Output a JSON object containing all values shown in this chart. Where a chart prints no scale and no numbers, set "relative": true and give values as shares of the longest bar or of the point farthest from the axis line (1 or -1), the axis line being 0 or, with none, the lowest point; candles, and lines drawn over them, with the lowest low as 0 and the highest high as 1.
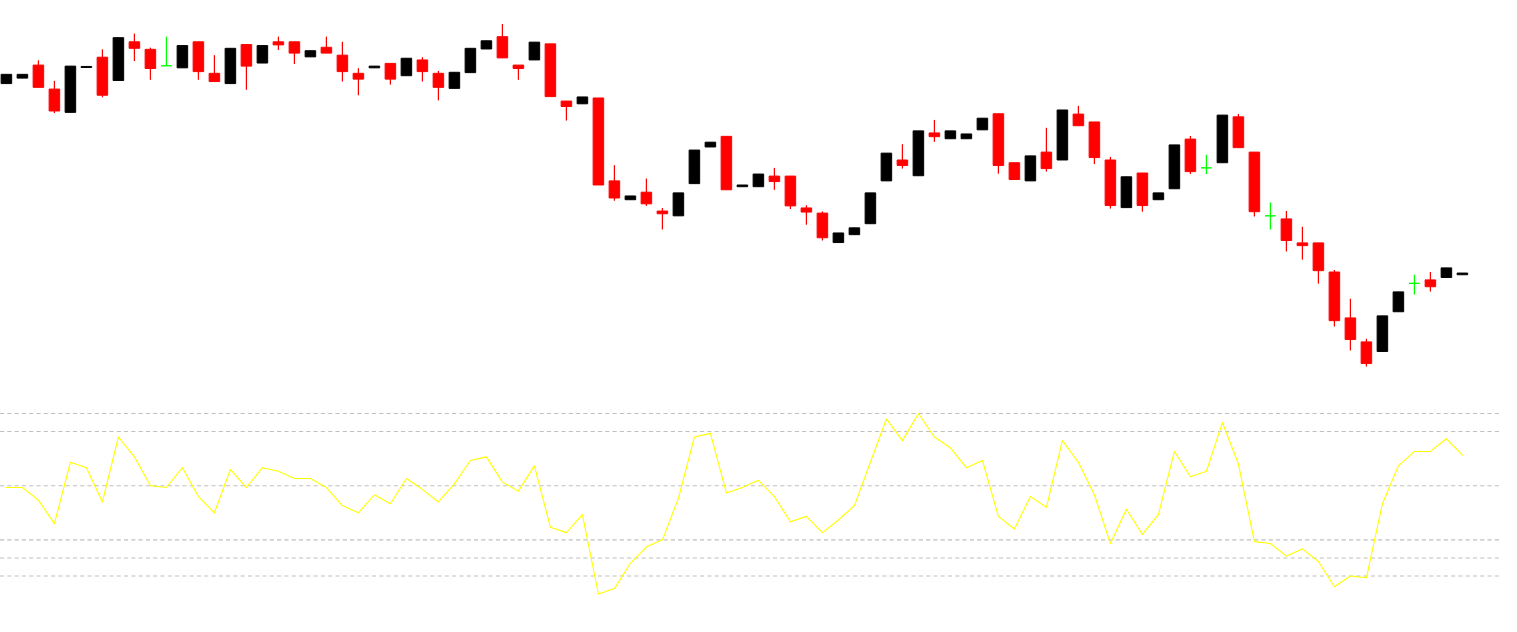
{
  "chart_data": [
    {
      "type": "candlestick",
      "relative": true,
      "tick_labels": false,
      "categories": [
        null,
        null,
        null,
        null,
        null,
        null,
        null,
        null,
        null,
        null,
        null,
        null,
        null,
        null,
        null,
        null,
        null,
        null,
        null,
        null,
        null,
        null,
        null,
        null,
        null,
        null,
        null,
        null,
        null,
        null,
        null,
        null,
        null,
        null,
        null,
        null,
        null,
        null,
        null,
        null,
        null,
        null,
        null,
        null,
        null,
        null,
        null,
        null,
        null,
        null,
        null,
        null,
        null,
        null,
        null,
        null,
        null,
        null,
        null,
        null,
        null,
        null,
        null,
        null,
        null,
        null,
        null,
        null,
        null,
        null,
        null,
        null,
        null,
        null,
        null,
        null,
        null,
        null,
        null,
        null,
        null,
        null,
        null,
        null,
        null,
        null,
        null,
        null,
        null,
        null,
        null,
        null
      ],
      "ohlc": [
        [
          0.826,
          0.853,
          0.826,
          0.853
        ],
        [
          0.842,
          0.853,
          0.842,
          0.853
        ],
        [
          0.88,
          0.894,
          0.815,
          0.815
        ],
        [
          0.81,
          0.834,
          0.74,
          0.746
        ],
        [
          0.742,
          0.877,
          0.742,
          0.877
        ],
        [
          0.873,
          0.876,
          0.873,
          0.876
        ],
        [
          0.903,
          0.926,
          0.786,
          0.792
        ],
        [
          0.835,
          0.96,
          0.835,
          0.96
        ],
        [
          0.948,
          0.972,
          0.892,
          0.929
        ],
        [
          0.926,
          0.931,
          0.837,
          0.87
        ],
        [
          0.878,
          0.963,
          0.878,
          0.878
        ],
        [
          0.872,
          0.937,
          0.872,
          0.937
        ],
        [
          0.948,
          0.948,
          0.837,
          0.861
        ],
        [
          0.856,
          0.909,
          0.832,
          0.832
        ],
        [
          0.826,
          0.929,
          0.826,
          0.929
        ],
        [
          0.94,
          0.94,
          0.808,
          0.877
        ],
        [
          0.886,
          0.937,
          0.886,
          0.937
        ],
        [
          0.948,
          0.963,
          0.924,
          0.939
        ],
        [
          0.948,
          0.948,
          0.883,
          0.915
        ],
        [
          0.904,
          0.922,
          0.904,
          0.922
        ],
        [
          0.932,
          0.963,
          0.915,
          0.915
        ],
        [
          0.909,
          0.948,
          0.832,
          0.861
        ],
        [
          0.856,
          0.871,
          0.792,
          0.839
        ],
        [
          0.872,
          0.877,
          0.872,
          0.877
        ],
        [
          0.885,
          0.885,
          0.823,
          0.839
        ],
        [
          0.849,
          0.9,
          0.849,
          0.9
        ],
        [
          0.895,
          0.903,
          0.832,
          0.861
        ],
        [
          0.856,
          0.863,
          0.777,
          0.815
        ],
        [
          0.812,
          0.859,
          0.812,
          0.859
        ],
        [
          0.858,
          0.929,
          0.858,
          0.929
        ],
        [
          0.927,
          0.951,
          0.927,
          0.951
        ],
        [
          0.963,
          1.0,
          0.901,
          0.901
        ],
        [
          0.88,
          0.88,
          0.837,
          0.87
        ],
        [
          0.895,
          0.947,
          0.895,
          0.947
        ],
        [
          0.942,
          0.942,
          0.788,
          0.788
        ],
        [
          0.775,
          0.775,
          0.718,
          0.759
        ],
        [
          0.767,
          0.787,
          0.767,
          0.787
        ],
        [
          0.784,
          0.784,
          0.53,
          0.53
        ],
        [
          0.542,
          0.588,
          0.484,
          0.492
        ],
        [
          0.487,
          0.498,
          0.487,
          0.498
        ],
        [
          0.509,
          0.549,
          0.469,
          0.475
        ],
        [
          0.454,
          0.463,
          0.4,
          0.446
        ],
        [
          0.44,
          0.507,
          0.44,
          0.507
        ],
        [
          0.534,
          0.632,
          0.534,
          0.632
        ],
        [
          0.641,
          0.655,
          0.641,
          0.655
        ],
        [
          0.672,
          0.672,
          0.516,
          0.516
        ],
        [
          0.525,
          0.53,
          0.525,
          0.53
        ],
        [
          0.525,
          0.562,
          0.525,
          0.562
        ],
        [
          0.556,
          0.58,
          0.516,
          0.54
        ],
        [
          0.556,
          0.556,
          0.46,
          0.469
        ],
        [
          0.463,
          0.471,
          0.414,
          0.451
        ],
        [
          0.448,
          0.453,
          0.368,
          0.376
        ],
        [
          0.362,
          0.39,
          0.362,
          0.39
        ],
        [
          0.385,
          0.405,
          0.385,
          0.405
        ],
        [
          0.417,
          0.507,
          0.417,
          0.507
        ],
        [
          0.542,
          0.623,
          0.542,
          0.623
        ],
        [
          0.603,
          0.649,
          0.578,
          0.587
        ],
        [
          0.557,
          0.688,
          0.557,
          0.688
        ],
        [
          0.682,
          0.72,
          0.656,
          0.671
        ],
        [
          0.665,
          0.688,
          0.665,
          0.688
        ],
        [
          0.665,
          0.679,
          0.665,
          0.679
        ],
        [
          0.691,
          0.725,
          0.691,
          0.725
        ],
        [
          0.738,
          0.738,
          0.563,
          0.587
        ],
        [
          0.595,
          0.595,
          0.546,
          0.546
        ],
        [
          0.542,
          0.615,
          0.542,
          0.615
        ],
        [
          0.626,
          0.697,
          0.569,
          0.578
        ],
        [
          0.603,
          0.749,
          0.603,
          0.749
        ],
        [
          0.737,
          0.761,
          0.703,
          0.703
        ],
        [
          0.714,
          0.714,
          0.591,
          0.61
        ],
        [
          0.603,
          0.612,
          0.461,
          0.47
        ],
        [
          0.464,
          0.554,
          0.464,
          0.554
        ],
        [
          0.565,
          0.565,
          0.452,
          0.47
        ],
        [
          0.487,
          0.507,
          0.487,
          0.507
        ],
        [
          0.519,
          0.647,
          0.519,
          0.647
        ],
        [
          0.664,
          0.673,
          0.562,
          0.569
        ],
        [
          0.58,
          0.618,
          0.562,
          0.58
        ],
        [
          0.595,
          0.734,
          0.595,
          0.734
        ],
        [
          0.729,
          0.737,
          0.639,
          0.639
        ],
        [
          0.626,
          0.626,
          0.438,
          0.452
        ],
        [
          0.44,
          0.479,
          0.4,
          0.44
        ],
        [
          0.431,
          0.454,
          0.336,
          0.368
        ],
        [
          0.361,
          0.408,
          0.312,
          0.353
        ],
        [
          0.361,
          0.361,
          0.242,
          0.28
        ],
        [
          0.276,
          0.282,
          0.117,
          0.134
        ],
        [
          0.142,
          0.198,
          0.047,
          0.079
        ],
        [
          0.072,
          0.081,
          0.0,
          0.009
        ],
        [
          0.044,
          0.148,
          0.044,
          0.148
        ],
        [
          0.16,
          0.218,
          0.16,
          0.218
        ],
        [
          0.243,
          0.268,
          0.21,
          0.243
        ],
        [
          0.253,
          0.276,
          0.219,
          0.233
        ],
        [
          0.26,
          0.288,
          0.26,
          0.288
        ],
        [
          0.268,
          0.273,
          0.268,
          0.273
        ]
      ],
      "colors": [
        "#000000",
        "#000000",
        "#ff0000",
        "#ff0000",
        "#000000",
        "#000000",
        "#ff0000",
        "#000000",
        "#ff0000",
        "#ff0000",
        "#00ff00",
        "#000000",
        "#ff0000",
        "#ff0000",
        "#000000",
        "#ff0000",
        "#000000",
        "#ff0000",
        "#ff0000",
        "#000000",
        "#ff0000",
        "#ff0000",
        "#ff0000",
        "#000000",
        "#ff0000",
        "#000000",
        "#ff0000",
        "#ff0000",
        "#000000",
        "#000000",
        "#000000",
        "#ff0000",
        "#ff0000",
        "#000000",
        "#ff0000",
        "#ff0000",
        "#000000",
        "#ff0000",
        "#ff0000",
        "#000000",
        "#ff0000",
        "#ff0000",
        "#000000",
        "#000000",
        "#000000",
        "#ff0000",
        "#000000",
        "#000000",
        "#ff0000",
        "#ff0000",
        "#ff0000",
        "#ff0000",
        "#000000",
        "#000000",
        "#000000",
        "#000000",
        "#ff0000",
        "#000000",
        "#ff0000",
        "#000000",
        "#000000",
        "#000000",
        "#ff0000",
        "#ff0000",
        "#000000",
        "#ff0000",
        "#000000",
        "#ff0000",
        "#ff0000",
        "#ff0000",
        "#000000",
        "#ff0000",
        "#000000",
        "#000000",
        "#ff0000",
        "#00ff00",
        "#000000",
        "#ff0000",
        "#ff0000",
        "#00ff00",
        "#ff0000",
        "#ff0000",
        "#ff0000",
        "#ff0000",
        "#ff0000",
        "#ff0000",
        "#000000",
        "#000000",
        "#00ff00",
        "#ff0000",
        "#000000",
        "#000000"
      ]
    },
    {
      "type": "line",
      "relative": true,
      "tick_labels": false,
      "categories": [
        null,
        null,
        null,
        null,
        null,
        null,
        null,
        null,
        null,
        null,
        null,
        null,
        null,
        null,
        null,
        null,
        null,
        null,
        null,
        null,
        null,
        null,
        null,
        null,
        null,
        null,
        null,
        null,
        null,
        null,
        null,
        null,
        null,
        null,
        null,
        null,
        null,
        null,
        null,
        null,
        null,
        null,
        null,
        null,
        null,
        null,
        null,
        null,
        null,
        null,
        null,
        null,
        null,
        null,
        null,
        null,
        null,
        null,
        null,
        null,
        null,
        null,
        null,
        null,
        null,
        null,
        null,
        null,
        null,
        null,
        null,
        null,
        null,
        null,
        null,
        null,
        null,
        null,
        null,
        null,
        null,
        null,
        null,
        null,
        null,
        null,
        null,
        null,
        null,
        null,
        null,
        null
      ],
      "series": [
        {
          "color": "#ffff00",
          "values": [
            0.59,
            0.59,
            0.52,
            0.39,
            0.73,
            0.7,
            0.51,
            0.87,
            0.76,
            0.6,
            0.59,
            0.7,
            0.54,
            0.45,
            0.69,
            0.59,
            0.7,
            0.68,
            0.64,
            0.64,
            0.59,
            0.49,
            0.45,
            0.55,
            0.5,
            0.64,
            0.58,
            0.51,
            0.61,
            0.74,
            0.76,
            0.62,
            0.57,
            0.71,
            0.37,
            0.34,
            0.44,
            0.0,
            0.03,
            0.17,
            0.26,
            0.3,
            0.53,
            0.87,
            0.89,
            0.56,
            0.59,
            0.63,
            0.54,
            0.4,
            0.43,
            0.34,
            0.41,
            0.49,
            0.73,
            0.97,
            0.85,
            1.0,
            0.87,
            0.81,
            0.7,
            0.74,
            0.43,
            0.36,
            0.54,
            0.48,
            0.85,
            0.73,
            0.55,
            0.28,
            0.47,
            0.33,
            0.44,
            0.79,
            0.65,
            0.68,
            0.95,
            0.72,
            0.29,
            0.28,
            0.21,
            0.25,
            0.18,
            0.04,
            0.1,
            0.09,
            0.5,
            0.71,
            0.79,
            0.79,
            0.86,
            0.77
          ]
        }
      ],
      "ref_lines": [
        {
          "axis": "y",
          "value": 1.0,
          "color": "#c0c0c0",
          "line_style": "dashed"
        },
        {
          "axis": "y",
          "value": 0.9,
          "color": "#c0c0c0",
          "line_style": "dashed"
        },
        {
          "axis": "y",
          "value": 0.6,
          "color": "#c0c0c0",
          "line_style": "dashed"
        },
        {
          "axis": "y",
          "value": 0.3,
          "color": "#c0c0c0",
          "line_style": "dashed"
        },
        {
          "axis": "y",
          "value": 0.2,
          "color": "#c0c0c0",
          "line_style": "dashed"
        },
        {
          "axis": "y",
          "value": 0.1,
          "color": "#c0c0c0",
          "line_style": "dashed"
        }
      ]
    }
  ]
}
